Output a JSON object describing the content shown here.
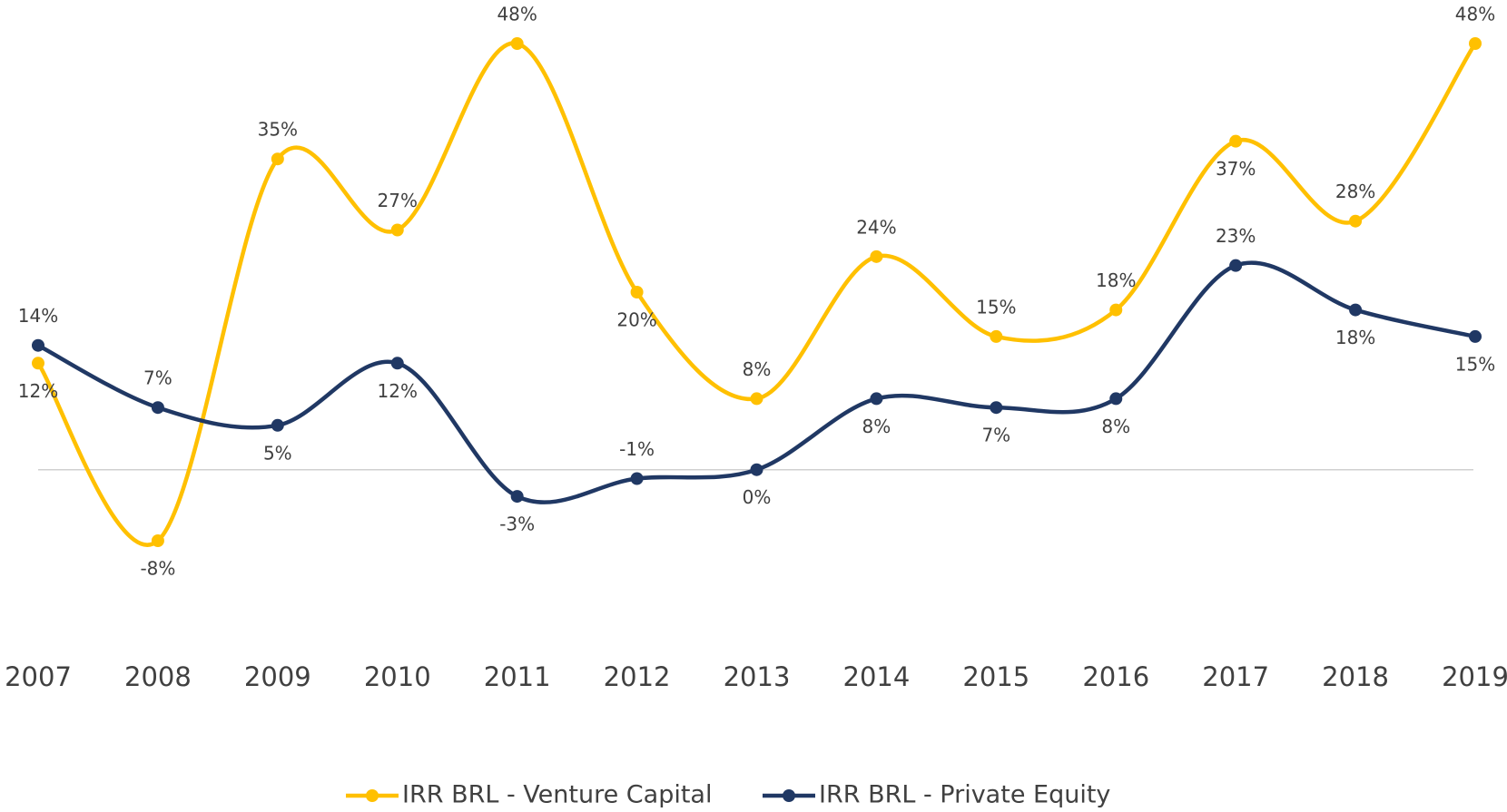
{
  "chart_data": {
    "type": "line",
    "categories": [
      "2007",
      "2008",
      "2009",
      "2010",
      "2011",
      "2012",
      "2013",
      "2014",
      "2015",
      "2016",
      "2017",
      "2018",
      "2019"
    ],
    "series": [
      {
        "name": "IRR BRL - Venture Capital",
        "color": "#FFC000",
        "values": [
          12,
          -8,
          35,
          27,
          48,
          20,
          8,
          24,
          15,
          18,
          37,
          28,
          48
        ],
        "value_labels": [
          "12%",
          "-8%",
          "35%",
          "27%",
          "48%",
          "20%",
          "8%",
          "24%",
          "15%",
          "18%",
          "37%",
          "28%",
          "48%"
        ]
      },
      {
        "name": "IRR BRL - Private Equity",
        "color": "#203864",
        "values": [
          14,
          7,
          5,
          12,
          -3,
          -1,
          0,
          8,
          7,
          8,
          23,
          18,
          15
        ],
        "value_labels": [
          "14%",
          "7%",
          "5%",
          "12%",
          "-3%",
          "-1%",
          "0%",
          "8%",
          "7%",
          "8%",
          "23%",
          "18%",
          "15%"
        ]
      }
    ],
    "legend": "bottom"
  }
}
